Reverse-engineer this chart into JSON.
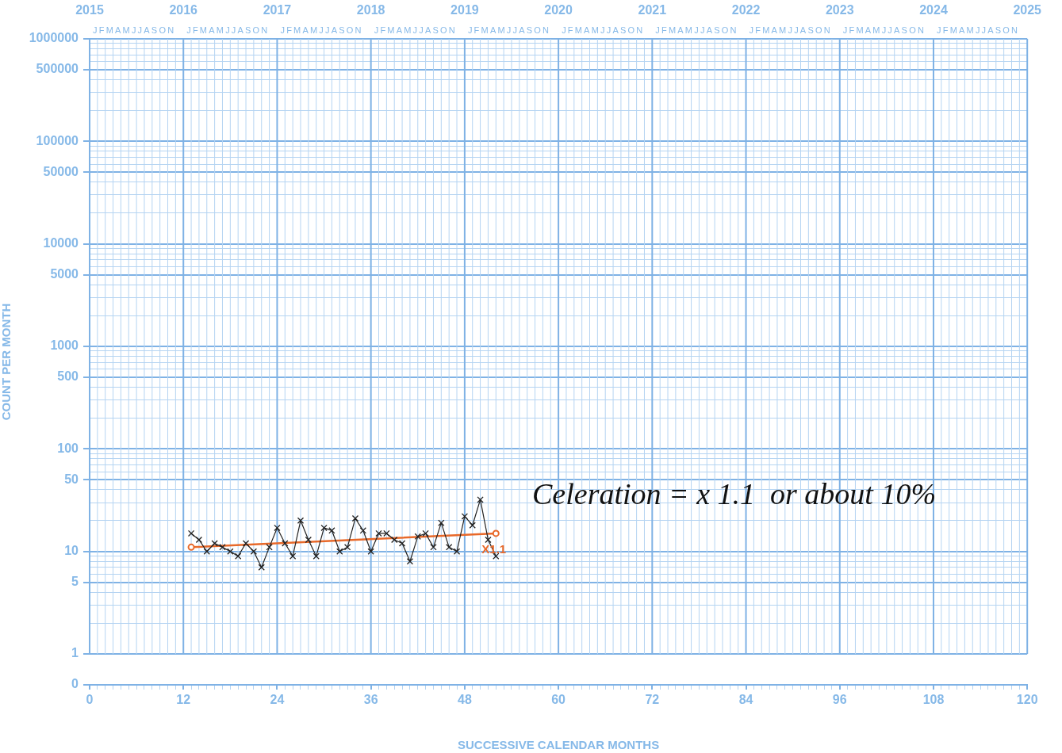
{
  "chart_data": {
    "type": "line",
    "xlabel": "SUCCESSIVE CALENDAR MONTHS",
    "ylabel": "COUNT PER MONTH",
    "log": "y",
    "grid": true,
    "marker": "cross",
    "series": [
      {
        "color": "#222222",
        "x": [
          13,
          14,
          15,
          16,
          17,
          18,
          19,
          20,
          21,
          22,
          23,
          24,
          25,
          26,
          27,
          28,
          29,
          30,
          31,
          32,
          33,
          34,
          35,
          36,
          37,
          38,
          39,
          40,
          41,
          42,
          43,
          44,
          45,
          46,
          47,
          48,
          49,
          50,
          51,
          52
        ],
        "values": [
          15,
          13,
          10,
          12,
          11,
          10,
          9,
          12,
          10,
          7,
          11,
          17,
          12,
          9,
          20,
          13,
          9,
          17,
          16,
          10,
          11,
          21,
          16,
          10,
          15,
          15,
          13,
          12,
          8,
          14,
          15,
          11,
          19,
          11,
          10,
          22,
          18,
          32,
          13,
          9
        ]
      },
      {
        "type": "line",
        "marker": "circle",
        "color": "#e8692a",
        "x": [
          13,
          52
        ],
        "values": [
          11,
          15
        ]
      }
    ],
    "annotations": [
      "JFMAMJJASON",
      "JFMAMJJASON",
      "JFMAMJJASON",
      "JFMAMJJASON",
      "JFMAMJJASON",
      "JFMAMJJASON",
      "JFMAMJJASON",
      "JFMAMJJASON",
      "JFMAMJJASON",
      "JFMAMJJASON",
      "Celeration = x 1.1  or about 10%",
      {
        "text": "X1.1",
        "x": 52,
        "y": 15
      }
    ],
    "xlim": [
      0,
      120
    ],
    "xticks": [
      0,
      {
        "value": 1,
        "label": null
      },
      {
        "value": 2,
        "label": null
      },
      {
        "value": 3,
        "label": null
      },
      {
        "value": 4,
        "label": null
      },
      {
        "value": 5,
        "label": null
      },
      {
        "value": 6,
        "label": null
      },
      {
        "value": 7,
        "label": null
      },
      {
        "value": 8,
        "label": null
      },
      {
        "value": 9,
        "label": null
      },
      {
        "value": 10,
        "label": null
      },
      {
        "value": 11,
        "label": null
      },
      12,
      {
        "value": 13,
        "label": null
      },
      {
        "value": 14,
        "label": null
      },
      {
        "value": 15,
        "label": null
      },
      {
        "value": 16,
        "label": null
      },
      {
        "value": 17,
        "label": null
      },
      {
        "value": 18,
        "label": null
      },
      {
        "value": 19,
        "label": null
      },
      {
        "value": 20,
        "label": null
      },
      {
        "value": 21,
        "label": null
      },
      {
        "value": 22,
        "label": null
      },
      {
        "value": 23,
        "label": null
      },
      24,
      {
        "value": 25,
        "label": null
      },
      {
        "value": 26,
        "label": null
      },
      {
        "value": 27,
        "label": null
      },
      {
        "value": 28,
        "label": null
      },
      {
        "value": 29,
        "label": null
      },
      {
        "value": 30,
        "label": null
      },
      {
        "value": 31,
        "label": null
      },
      {
        "value": 32,
        "label": null
      },
      {
        "value": 33,
        "label": null
      },
      {
        "value": 34,
        "label": null
      },
      {
        "value": 35,
        "label": null
      },
      36,
      {
        "value": 37,
        "label": null
      },
      {
        "value": 38,
        "label": null
      },
      {
        "value": 39,
        "label": null
      },
      {
        "value": 40,
        "label": null
      },
      {
        "value": 41,
        "label": null
      },
      {
        "value": 42,
        "label": null
      },
      {
        "value": 43,
        "label": null
      },
      {
        "value": 44,
        "label": null
      },
      {
        "value": 45,
        "label": null
      },
      {
        "value": 46,
        "label": null
      },
      {
        "value": 47,
        "label": null
      },
      48,
      {
        "value": 49,
        "label": null
      },
      {
        "value": 50,
        "label": null
      },
      {
        "value": 51,
        "label": null
      },
      {
        "value": 52,
        "label": null
      },
      {
        "value": 53,
        "label": null
      },
      {
        "value": 54,
        "label": null
      },
      {
        "value": 55,
        "label": null
      },
      {
        "value": 56,
        "label": null
      },
      {
        "value": 57,
        "label": null
      },
      {
        "value": 58,
        "label": null
      },
      {
        "value": 59,
        "label": null
      },
      60,
      {
        "value": 61,
        "label": null
      },
      {
        "value": 62,
        "label": null
      },
      {
        "value": 63,
        "label": null
      },
      {
        "value": 64,
        "label": null
      },
      {
        "value": 65,
        "label": null
      },
      {
        "value": 66,
        "label": null
      },
      {
        "value": 67,
        "label": null
      },
      {
        "value": 68,
        "label": null
      },
      {
        "value": 69,
        "label": null
      },
      {
        "value": 70,
        "label": null
      },
      {
        "value": 71,
        "label": null
      },
      72,
      {
        "value": 73,
        "label": null
      },
      {
        "value": 74,
        "label": null
      },
      {
        "value": 75,
        "label": null
      },
      {
        "value": 76,
        "label": null
      },
      {
        "value": 77,
        "label": null
      },
      {
        "value": 78,
        "label": null
      },
      {
        "value": 79,
        "label": null
      },
      {
        "value": 80,
        "label": null
      },
      {
        "value": 81,
        "label": null
      },
      {
        "value": 82,
        "label": null
      },
      {
        "value": 83,
        "label": null
      },
      84,
      {
        "value": 85,
        "label": null
      },
      {
        "value": 86,
        "label": null
      },
      {
        "value": 87,
        "label": null
      },
      {
        "value": 88,
        "label": null
      },
      {
        "value": 89,
        "label": null
      },
      {
        "value": 90,
        "label": null
      },
      {
        "value": 91,
        "label": null
      },
      {
        "value": 92,
        "label": null
      },
      {
        "value": 93,
        "label": null
      },
      {
        "value": 94,
        "label": null
      },
      {
        "value": 95,
        "label": null
      },
      96,
      {
        "value": 97,
        "label": null
      },
      {
        "value": 98,
        "label": null
      },
      {
        "value": 99,
        "label": null
      },
      {
        "value": 100,
        "label": null
      },
      {
        "value": 101,
        "label": null
      },
      {
        "value": 102,
        "label": null
      },
      {
        "value": 103,
        "label": null
      },
      {
        "value": 104,
        "label": null
      },
      {
        "value": 105,
        "label": null
      },
      {
        "value": 106,
        "label": null
      },
      {
        "value": 107,
        "label": null
      },
      108,
      {
        "value": 109,
        "label": null
      },
      {
        "value": 110,
        "label": null
      },
      {
        "value": 111,
        "label": null
      },
      {
        "value": 112,
        "label": null
      },
      {
        "value": 113,
        "label": null
      },
      {
        "value": 114,
        "label": null
      },
      {
        "value": 115,
        "label": null
      },
      {
        "value": 116,
        "label": null
      },
      {
        "value": 117,
        "label": null
      },
      {
        "value": 118,
        "label": null
      },
      {
        "value": 119,
        "label": null
      },
      120
    ],
    "x2lim": [
      2015,
      2025
    ],
    "x2ticks": [
      2015,
      2016,
      2017,
      2018,
      2019,
      2020,
      2021,
      2022,
      2023,
      2024,
      2025
    ],
    "ylim": [
      0.5,
      1000000
    ],
    "yticks": [
      {
        "value": 0.5,
        "label": "0"
      },
      1,
      {
        "value": 2,
        "label": null
      },
      {
        "value": 3,
        "label": null
      },
      {
        "value": 4,
        "label": null
      },
      5,
      {
        "value": 6,
        "label": null
      },
      {
        "value": 7,
        "label": null
      },
      {
        "value": 8,
        "label": null
      },
      {
        "value": 9,
        "label": null
      },
      10,
      {
        "value": 20,
        "label": null
      },
      {
        "value": 30,
        "label": null
      },
      {
        "value": 40,
        "label": null
      },
      50,
      {
        "value": 60,
        "label": null
      },
      {
        "value": 70,
        "label": null
      },
      {
        "value": 80,
        "label": null
      },
      {
        "value": 90,
        "label": null
      },
      100,
      {
        "value": 200,
        "label": null
      },
      {
        "value": 300,
        "label": null
      },
      {
        "value": 400,
        "label": null
      },
      500,
      {
        "value": 600,
        "label": null
      },
      {
        "value": 700,
        "label": null
      },
      {
        "value": 800,
        "label": null
      },
      {
        "value": 900,
        "label": null
      },
      1000,
      {
        "value": 2000,
        "label": null
      },
      {
        "value": 3000,
        "label": null
      },
      {
        "value": 4000,
        "label": null
      },
      5000,
      {
        "value": 6000,
        "label": null
      },
      {
        "value": 7000,
        "label": null
      },
      {
        "value": 8000,
        "label": null
      },
      {
        "value": 9000,
        "label": null
      },
      10000,
      {
        "value": 20000,
        "label": null
      },
      {
        "value": 30000,
        "label": null
      },
      {
        "value": 40000,
        "label": null
      },
      50000,
      {
        "value": 60000,
        "label": null
      },
      {
        "value": 70000,
        "label": null
      },
      {
        "value": 80000,
        "label": null
      },
      {
        "value": 90000,
        "label": null
      },
      100000,
      {
        "value": 200000,
        "label": null
      },
      {
        "value": 300000,
        "label": null
      },
      {
        "value": 400000,
        "label": null
      },
      500000,
      {
        "value": 600000,
        "label": null
      },
      {
        "value": 700000,
        "label": null
      },
      {
        "value": 800000,
        "label": null
      },
      {
        "value": 900000,
        "label": null
      },
      1000000
    ]
  }
}
